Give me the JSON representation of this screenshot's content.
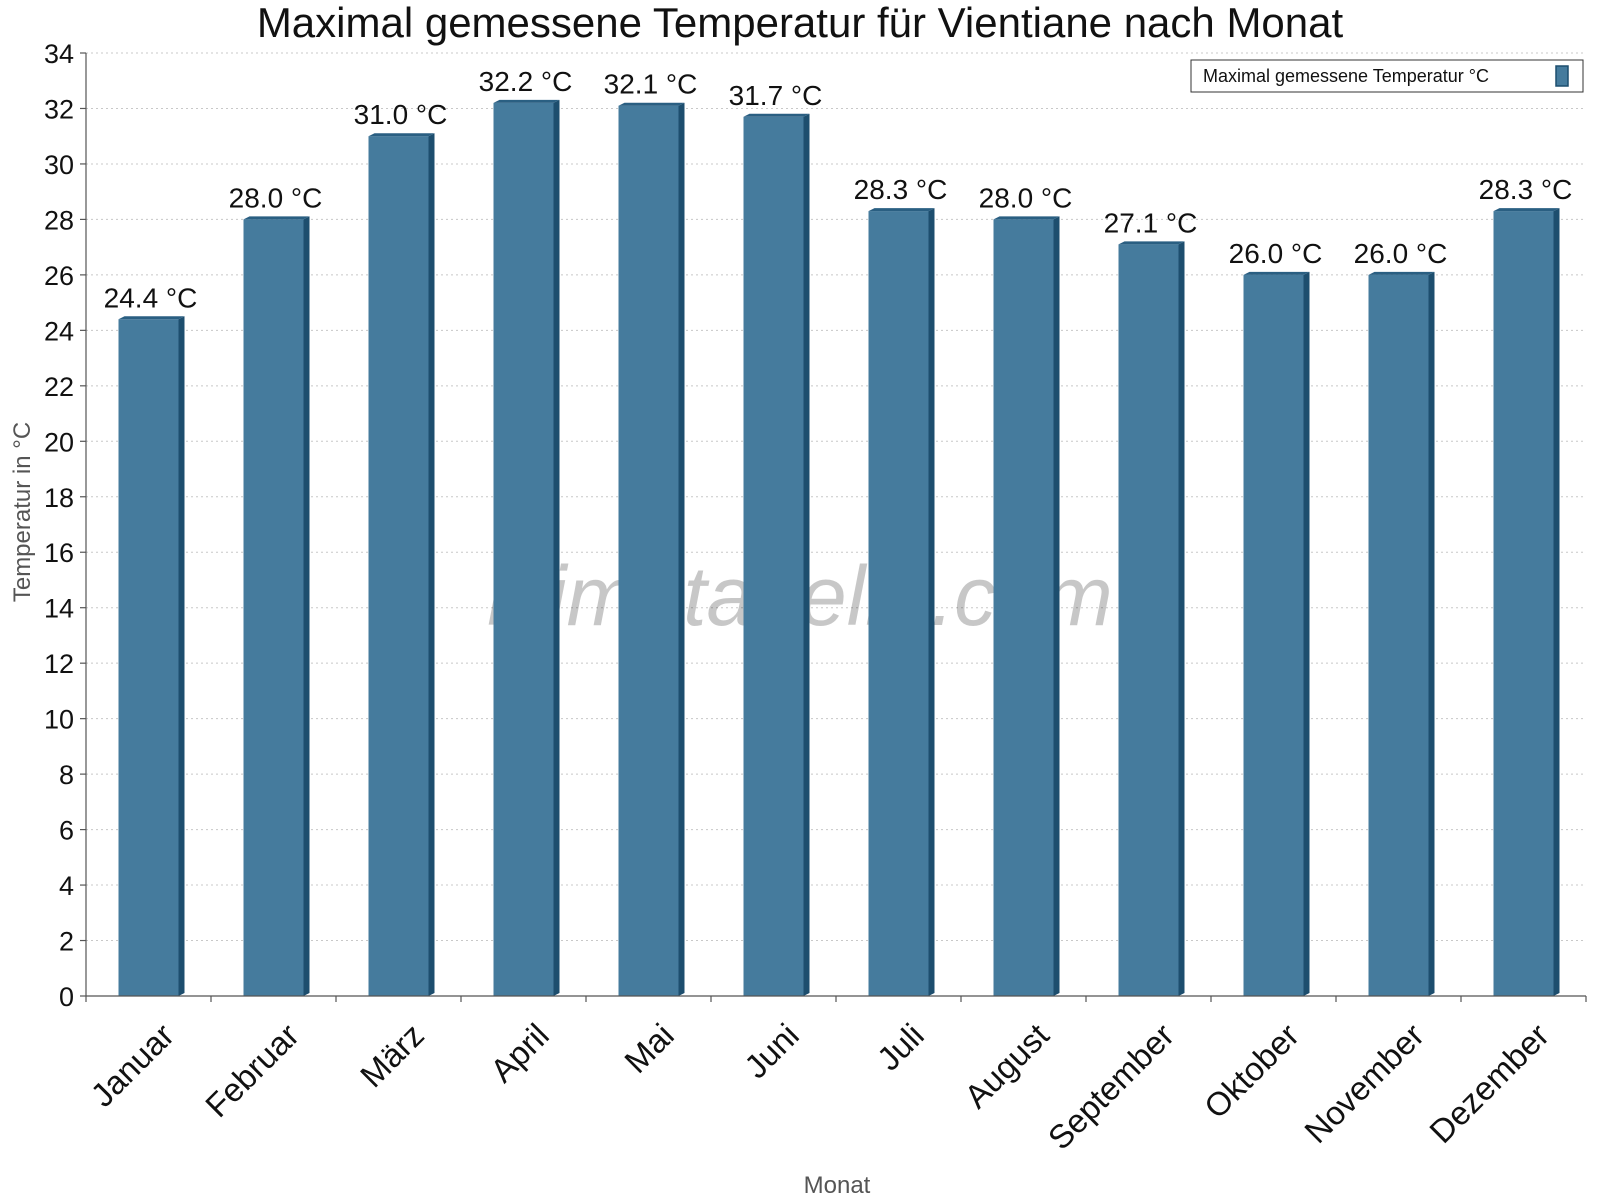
{
  "chart_data": {
    "type": "bar",
    "title": "Maximal gemessene Temperatur für Vientiane nach Monat",
    "xlabel": "Monat",
    "ylabel": "Temperatur in °C",
    "ylim": [
      0,
      34
    ],
    "y_ticks": [
      0,
      2,
      4,
      6,
      8,
      10,
      12,
      14,
      16,
      18,
      20,
      22,
      24,
      26,
      28,
      30,
      32,
      34
    ],
    "grid": true,
    "legend_position": "top-right",
    "categories": [
      "Januar",
      "Februar",
      "März",
      "April",
      "Mai",
      "Juni",
      "Juli",
      "August",
      "September",
      "Oktober",
      "November",
      "Dezember"
    ],
    "series": [
      {
        "name": "Maximal gemessene Temperatur °C",
        "color": "#457b9d",
        "values": [
          24.4,
          28.0,
          31.0,
          32.2,
          32.1,
          31.7,
          28.3,
          28.0,
          27.1,
          26.0,
          26.0,
          28.3
        ],
        "data_labels": [
          "24.4 °C",
          "28.0 °C",
          "31.0 °C",
          "32.2 °C",
          "32.1 °C",
          "31.7 °C",
          "28.3 °C",
          "28.0 °C",
          "27.1 °C",
          "26.0 °C",
          "26.0 °C",
          "28.3 °C"
        ]
      }
    ]
  },
  "watermark": "klimatabelle.com",
  "colors": {
    "bar_front": "#457b9d",
    "bar_side": "#1d4e6e",
    "bar_top": "#2a5f82"
  }
}
